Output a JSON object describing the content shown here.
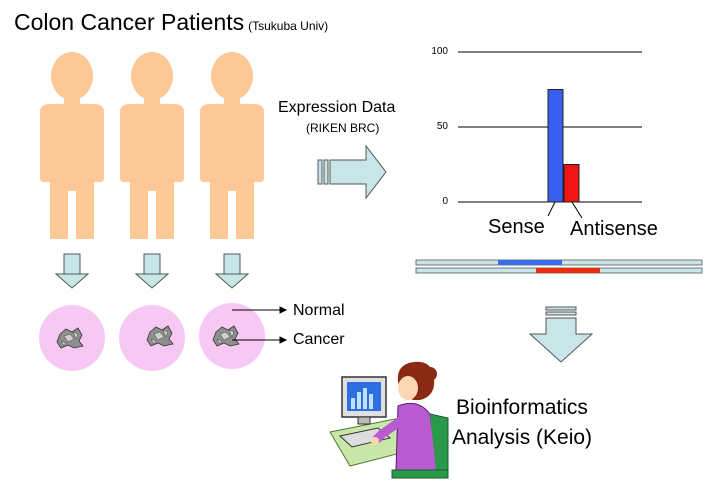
{
  "title": {
    "main": "Colon Cancer Patients",
    "sub": "(Tsukuba Univ)"
  },
  "expression": {
    "label": "Expression Data",
    "source": "(RIKEN BRC)"
  },
  "tissue_labels": {
    "normal": "Normal",
    "cancer": "Cancer"
  },
  "analysis": {
    "line1": "Bioinformatics",
    "line2": "Analysis (Keio)"
  },
  "colors": {
    "skin": "#fbc896",
    "arrow": "#c8e6e8",
    "tissue": "#f7c8f4",
    "sense": "#3366ee",
    "antisense": "#ee1a10"
  },
  "patients": [
    "patient-1",
    "patient-2",
    "patient-3"
  ],
  "chart_data": {
    "type": "bar",
    "categories": [
      "Sense",
      "Antisense"
    ],
    "values": [
      75,
      25
    ],
    "colors": [
      "#3a5ff0",
      "#f01414"
    ],
    "yticks": [
      "100",
      "50",
      "0"
    ],
    "ylim": [
      0,
      100
    ],
    "grid": true
  }
}
